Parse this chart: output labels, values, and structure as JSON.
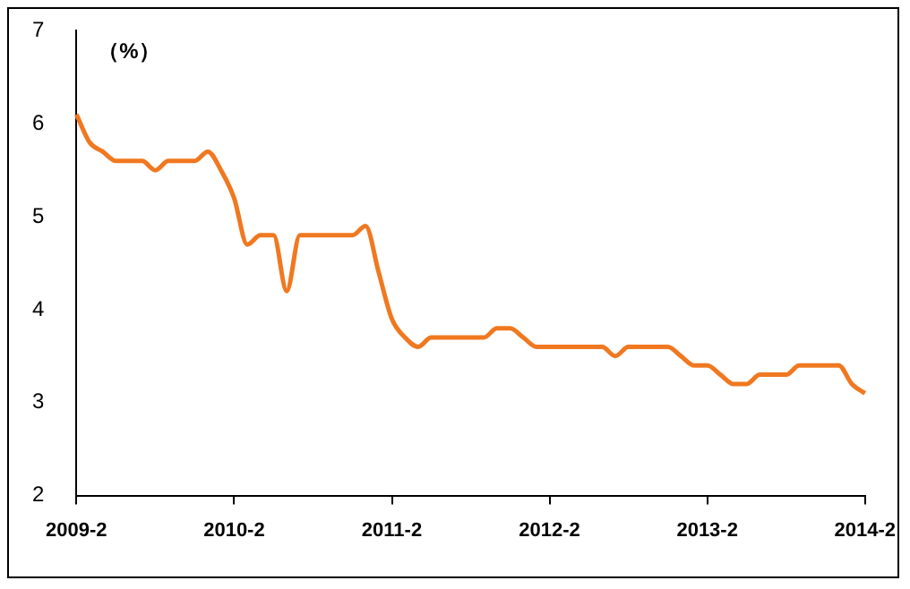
{
  "chart_data": {
    "type": "line",
    "ylabel": "（%）",
    "categories": [
      "2009-2",
      null,
      null,
      null,
      null,
      null,
      null,
      null,
      null,
      null,
      null,
      null,
      "2010-2",
      null,
      null,
      null,
      null,
      null,
      null,
      null,
      null,
      null,
      null,
      null,
      "2011-2",
      null,
      null,
      null,
      null,
      null,
      null,
      null,
      null,
      null,
      null,
      null,
      "2012-2",
      null,
      null,
      null,
      null,
      null,
      null,
      null,
      null,
      null,
      null,
      null,
      "2013-2",
      null,
      null,
      null,
      null,
      null,
      null,
      null,
      null,
      null,
      null,
      null,
      "2014-2"
    ],
    "series": [
      {
        "color": "#f07820",
        "values": [
          6.1,
          5.8,
          5.7,
          5.6,
          5.6,
          5.6,
          5.5,
          5.6,
          5.6,
          5.6,
          5.7,
          5.5,
          5.2,
          4.7,
          4.8,
          4.8,
          4.2,
          4.8,
          4.8,
          4.8,
          4.8,
          4.8,
          4.9,
          4.4,
          3.9,
          3.7,
          3.6,
          3.7,
          3.7,
          3.7,
          3.7,
          3.7,
          3.8,
          3.8,
          3.7,
          3.6,
          3.6,
          3.6,
          3.6,
          3.6,
          3.6,
          3.5,
          3.6,
          3.6,
          3.6,
          3.6,
          3.5,
          3.4,
          3.4,
          3.3,
          3.2,
          3.2,
          3.3,
          3.3,
          3.3,
          3.4,
          3.4,
          3.4,
          3.4,
          3.2,
          3.1
        ]
      }
    ],
    "ylim": [
      2,
      7
    ],
    "yticks": [
      2,
      3,
      4,
      5,
      6,
      7
    ]
  }
}
